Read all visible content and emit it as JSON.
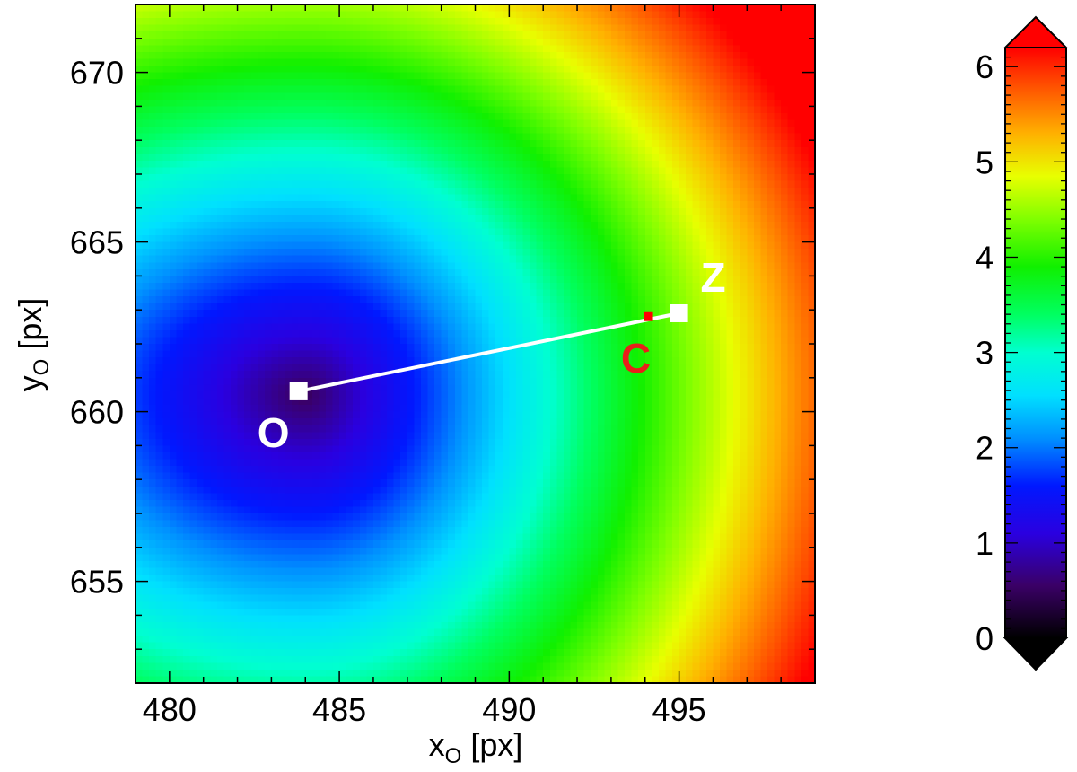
{
  "chart_data": {
    "type": "heatmap",
    "title": "",
    "x_axis": {
      "label_main": "x",
      "label_sub": "O",
      "label_unit": " [px]",
      "range": [
        479,
        499
      ],
      "ticks": [
        480,
        485,
        490,
        495
      ],
      "tick_labels": [
        "480",
        "485",
        "490",
        "495"
      ]
    },
    "y_axis": {
      "label_main": "y",
      "label_sub": "O",
      "label_unit": " [px]",
      "range": [
        652,
        672
      ],
      "ticks": [
        655,
        660,
        665,
        670
      ],
      "tick_labels": [
        "655",
        "660",
        "665",
        "670"
      ]
    },
    "field": {
      "minimum_at": [
        484,
        660.5
      ],
      "value_at_minimum": 0.5,
      "approx_values": [
        {
          "x": 484,
          "y": 660.5,
          "value": 0.5
        },
        {
          "x": 479,
          "y": 660.5,
          "value": 1.7
        },
        {
          "x": 488,
          "y": 660.5,
          "value": 1.6
        },
        {
          "x": 492,
          "y": 660.5,
          "value": 3.0
        },
        {
          "x": 484,
          "y": 652,
          "value": 3.0
        },
        {
          "x": 484,
          "y": 672,
          "value": 3.7
        },
        {
          "x": 499,
          "y": 672,
          "value": 6.0
        },
        {
          "x": 499,
          "y": 652,
          "value": 5.8
        },
        {
          "x": 479,
          "y": 672,
          "value": 3.9
        }
      ],
      "grid_step": 0.2
    },
    "colorbar": {
      "range": [
        0,
        6.2
      ],
      "ticks": [
        0,
        1,
        2,
        3,
        4,
        5,
        6
      ],
      "tick_labels": [
        "0",
        "1",
        "2",
        "3",
        "4",
        "5",
        "6"
      ],
      "extend": "both",
      "colormap": [
        {
          "v": 0.0,
          "color": "#000000"
        },
        {
          "v": 0.55,
          "color": "#3a0066"
        },
        {
          "v": 1.1,
          "color": "#2a00e0"
        },
        {
          "v": 1.6,
          "color": "#0018ff"
        },
        {
          "v": 2.1,
          "color": "#0090ff"
        },
        {
          "v": 2.55,
          "color": "#00e0ff"
        },
        {
          "v": 3.0,
          "color": "#00ffd0"
        },
        {
          "v": 3.4,
          "color": "#00ff60"
        },
        {
          "v": 3.9,
          "color": "#10f000"
        },
        {
          "v": 4.4,
          "color": "#80ff00"
        },
        {
          "v": 4.85,
          "color": "#e8ff00"
        },
        {
          "v": 5.3,
          "color": "#ffb000"
        },
        {
          "v": 5.8,
          "color": "#ff5000"
        },
        {
          "v": 6.2,
          "color": "#ff0000"
        }
      ],
      "under_color": "#000000",
      "over_color": "#ff0000"
    },
    "points": [
      {
        "label": "O",
        "x": 483.8,
        "y": 660.6,
        "marker": "square",
        "color": "#ffffff",
        "label_color": "#ffffff",
        "label_pos": "below-left"
      },
      {
        "label": "C",
        "x": 494.1,
        "y": 662.8,
        "marker": "small-square",
        "color": "#ff0000",
        "label_color": "#e8201a",
        "label_pos": "below"
      },
      {
        "label": "Z",
        "x": 495.0,
        "y": 662.9,
        "marker": "square",
        "color": "#ffffff",
        "label_color": "#ffffff",
        "label_pos": "above-right"
      }
    ],
    "line": {
      "from": "O",
      "to": "Z",
      "color": "#ffffff"
    }
  }
}
